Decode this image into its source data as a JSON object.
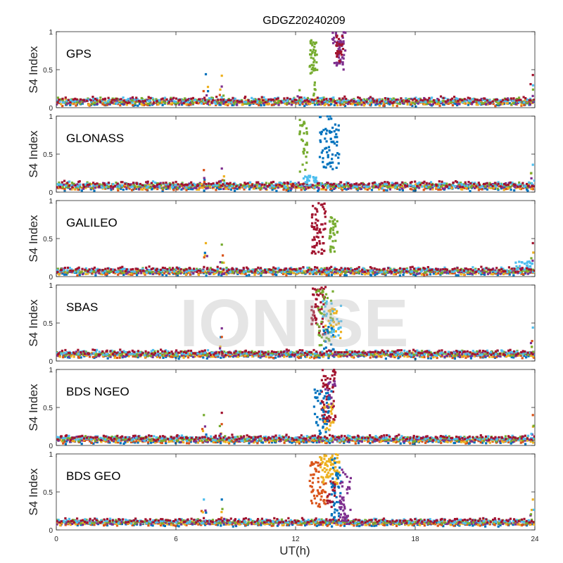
{
  "chart_data": {
    "type": "scatter",
    "title": "GDGZ20240209",
    "xlabel": "UT(h)",
    "xlim": [
      0,
      24
    ],
    "xticks": [
      0,
      6,
      12,
      18,
      24
    ],
    "watermark": "IONISE",
    "series_colors": [
      "#0072BD",
      "#D95319",
      "#EDB120",
      "#7E2F8E",
      "#77AC30",
      "#4DBEEE",
      "#A2142F"
    ],
    "panels": [
      {
        "name": "GPS",
        "ylabel": "S4 Index",
        "ylim": [
          0,
          1
        ],
        "yticks": [
          0,
          0.5,
          1
        ],
        "yticklabels": [
          "0",
          "0.5",
          "1"
        ],
        "baseline": 0.08,
        "noise": 0.035,
        "spikes": [
          {
            "x": 7.5,
            "y": 0.44
          },
          {
            "x": 8.3,
            "y": 0.42
          },
          {
            "x": 12.2,
            "y": 0.23
          },
          {
            "x": 23.9,
            "y": 0.43
          }
        ],
        "bursts": [
          {
            "color": 4,
            "x0": 12.7,
            "x1": 13.1,
            "y0": 0.45,
            "y1": 0.9,
            "n": 40
          },
          {
            "color": 3,
            "x0": 13.8,
            "x1": 14.5,
            "y0": 0.5,
            "y1": 1.0,
            "n": 50
          },
          {
            "color": 6,
            "x0": 14.0,
            "x1": 14.4,
            "y0": 0.6,
            "y1": 0.95,
            "n": 25
          },
          {
            "color": 4,
            "x0": 12.9,
            "x1": 13.0,
            "y0": 0.15,
            "y1": 0.35,
            "n": 6
          }
        ]
      },
      {
        "name": "GLONASS",
        "ylabel": "S4 Index",
        "ylim": [
          0,
          1
        ],
        "yticks": [
          0,
          0.5,
          1
        ],
        "yticklabels": [
          "0",
          "0.5",
          "1"
        ],
        "baseline": 0.08,
        "noise": 0.035,
        "spikes": [
          {
            "x": 7.4,
            "y": 0.29
          },
          {
            "x": 8.3,
            "y": 0.31
          },
          {
            "x": 23.9,
            "y": 0.36
          }
        ],
        "bursts": [
          {
            "color": 4,
            "x0": 12.2,
            "x1": 12.6,
            "y0": 0.25,
            "y1": 0.95,
            "n": 30
          },
          {
            "color": 0,
            "x0": 13.2,
            "x1": 14.2,
            "y0": 0.3,
            "y1": 1.0,
            "n": 70
          },
          {
            "color": 5,
            "x0": 12.4,
            "x1": 13.1,
            "y0": 0.12,
            "y1": 0.22,
            "n": 20
          }
        ]
      },
      {
        "name": "GALILEO",
        "ylabel": "S4 Index",
        "ylim": [
          0,
          1
        ],
        "yticks": [
          0,
          0.5,
          1
        ],
        "yticklabels": [
          "0",
          "0.5",
          "1"
        ],
        "baseline": 0.07,
        "noise": 0.03,
        "spikes": [
          {
            "x": 7.5,
            "y": 0.44
          },
          {
            "x": 8.3,
            "y": 0.42
          },
          {
            "x": 23.9,
            "y": 0.44
          }
        ],
        "bursts": [
          {
            "color": 6,
            "x0": 12.8,
            "x1": 13.5,
            "y0": 0.3,
            "y1": 0.98,
            "n": 65
          },
          {
            "color": 4,
            "x0": 13.7,
            "x1": 14.1,
            "y0": 0.3,
            "y1": 0.78,
            "n": 35
          },
          {
            "color": 5,
            "x0": 23.0,
            "x1": 24.0,
            "y0": 0.1,
            "y1": 0.2,
            "n": 15
          }
        ]
      },
      {
        "name": "SBAS",
        "ylabel": "S4 Index",
        "ylim": [
          0,
          1
        ],
        "yticks": [
          0,
          0.5,
          1
        ],
        "yticklabels": [
          "0",
          "0.5",
          "1"
        ],
        "baseline": 0.09,
        "noise": 0.03,
        "spikes": [
          {
            "x": 8.3,
            "y": 0.43
          },
          {
            "x": 23.9,
            "y": 0.44
          }
        ],
        "bursts": [
          {
            "color": 6,
            "x0": 12.8,
            "x1": 13.5,
            "y0": 0.35,
            "y1": 0.98,
            "n": 55
          },
          {
            "color": 4,
            "x0": 13.0,
            "x1": 13.9,
            "y0": 0.2,
            "y1": 0.95,
            "n": 40
          },
          {
            "color": 5,
            "x0": 13.3,
            "x1": 14.3,
            "y0": 0.3,
            "y1": 0.8,
            "n": 30
          },
          {
            "color": 2,
            "x0": 13.5,
            "x1": 14.3,
            "y0": 0.3,
            "y1": 0.7,
            "n": 20
          },
          {
            "color": 0,
            "x0": 13.4,
            "x1": 14.0,
            "y0": 0.15,
            "y1": 0.5,
            "n": 15
          }
        ]
      },
      {
        "name": "BDS NGEO",
        "ylabel": "S4 Index",
        "ylim": [
          0,
          1
        ],
        "yticks": [
          0,
          0.5,
          1
        ],
        "yticklabels": [
          "0",
          "0.5",
          "1"
        ],
        "baseline": 0.08,
        "noise": 0.03,
        "spikes": [
          {
            "x": 7.4,
            "y": 0.4
          },
          {
            "x": 8.3,
            "y": 0.43
          },
          {
            "x": 23.9,
            "y": 0.4
          }
        ],
        "bursts": [
          {
            "color": 6,
            "x0": 13.3,
            "x1": 14.0,
            "y0": 0.3,
            "y1": 1.0,
            "n": 70
          },
          {
            "color": 0,
            "x0": 12.9,
            "x1": 13.8,
            "y0": 0.15,
            "y1": 0.75,
            "n": 45
          },
          {
            "color": 2,
            "x0": 13.4,
            "x1": 13.9,
            "y0": 0.2,
            "y1": 0.55,
            "n": 20
          },
          {
            "color": 3,
            "x0": 13.5,
            "x1": 14.0,
            "y0": 0.5,
            "y1": 0.85,
            "n": 15
          }
        ]
      },
      {
        "name": "BDS GEO",
        "ylabel": "S4 Index",
        "ylim": [
          0,
          1
        ],
        "yticks": [
          0,
          0.5,
          1
        ],
        "yticklabels": [
          "0",
          "0.5",
          "1"
        ],
        "baseline": 0.1,
        "noise": 0.025,
        "spikes": [
          {
            "x": 7.4,
            "y": 0.4
          },
          {
            "x": 8.3,
            "y": 0.4
          },
          {
            "x": 23.9,
            "y": 0.4
          }
        ],
        "bursts": [
          {
            "color": 1,
            "x0": 12.7,
            "x1": 13.6,
            "y0": 0.3,
            "y1": 0.9,
            "n": 60
          },
          {
            "color": 2,
            "x0": 13.2,
            "x1": 14.2,
            "y0": 0.6,
            "y1": 1.0,
            "n": 70
          },
          {
            "color": 0,
            "x0": 13.8,
            "x1": 14.3,
            "y0": 0.1,
            "y1": 0.95,
            "n": 45
          },
          {
            "color": 3,
            "x0": 14.2,
            "x1": 14.8,
            "y0": 0.1,
            "y1": 0.8,
            "n": 45
          },
          {
            "color": 6,
            "x0": 13.6,
            "x1": 14.0,
            "y0": 0.3,
            "y1": 0.7,
            "n": 15
          }
        ]
      }
    ]
  }
}
